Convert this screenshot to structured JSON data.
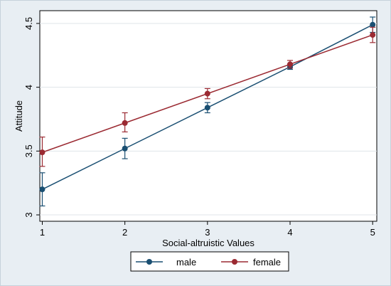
{
  "chart_data": {
    "type": "line",
    "title": "",
    "xlabel": "Social-altruistic Values",
    "ylabel": "Attitude",
    "x": [
      1,
      2,
      3,
      4,
      5
    ],
    "xlim": [
      0.97,
      5.05
    ],
    "ylim": [
      2.95,
      4.6
    ],
    "xticks": [
      "1",
      "2",
      "3",
      "4",
      "5"
    ],
    "yticks": [
      "3",
      "3.5",
      "4",
      "4.5"
    ],
    "ytick_values": [
      3,
      3.5,
      4,
      4.5
    ],
    "grid": true,
    "legend_position": "bottom",
    "error_bars": true,
    "series": [
      {
        "name": "male",
        "color": "#1a4f72",
        "values": [
          3.2,
          3.52,
          3.84,
          4.16,
          4.49
        ],
        "lower": [
          3.07,
          3.44,
          3.8,
          4.14,
          4.43
        ],
        "upper": [
          3.33,
          3.6,
          3.88,
          4.18,
          4.55
        ]
      },
      {
        "name": "female",
        "color": "#9b2a32",
        "values": [
          3.49,
          3.72,
          3.95,
          4.18,
          4.41
        ],
        "lower": [
          3.38,
          3.65,
          3.91,
          4.15,
          4.35
        ],
        "upper": [
          3.61,
          3.8,
          3.99,
          4.21,
          4.47
        ]
      }
    ]
  }
}
